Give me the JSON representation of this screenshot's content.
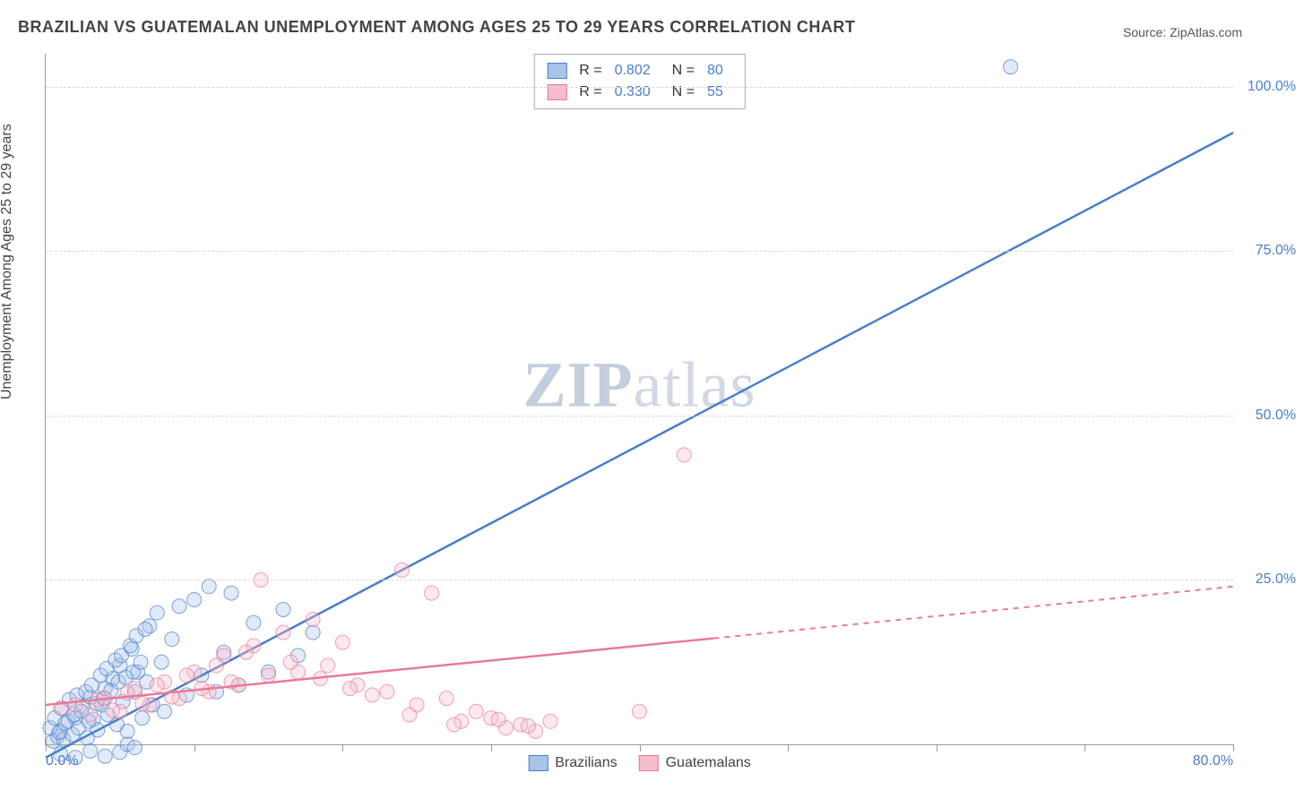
{
  "title": "BRAZILIAN VS GUATEMALAN UNEMPLOYMENT AMONG AGES 25 TO 29 YEARS CORRELATION CHART",
  "source_label": "Source:",
  "source_value": "ZipAtlas.com",
  "y_axis_label": "Unemployment Among Ages 25 to 29 years",
  "watermark_bold": "ZIP",
  "watermark_light": "atlas",
  "chart": {
    "type": "scatter-regression",
    "xlim": [
      0,
      80
    ],
    "ylim": [
      0,
      105
    ],
    "x_ticks": [
      0,
      10,
      20,
      30,
      40,
      50,
      60,
      70,
      80
    ],
    "x_tick_labels": {
      "0": "0.0%",
      "80": "80.0%"
    },
    "y_gridlines": [
      25,
      50,
      75,
      100
    ],
    "y_tick_labels": {
      "25": "25.0%",
      "50": "50.0%",
      "75": "75.0%",
      "100": "100.0%"
    },
    "grid_color": "#d8d8d8",
    "axis_color": "#999999",
    "background_color": "#ffffff",
    "tick_label_color": "#4a7ec9",
    "marker_radius": 8,
    "marker_opacity": 0.35,
    "line_width": 2.5,
    "series": [
      {
        "name": "Brazilians",
        "color": "#4a7ec9",
        "fill": "#a8c4e8",
        "R": "0.802",
        "N": "80",
        "regression": {
          "x1": 0,
          "y1": -2,
          "x2": 80,
          "y2": 93,
          "dash_from_x": 80
        },
        "points": [
          [
            0.5,
            0.5
          ],
          [
            0.8,
            1.2
          ],
          [
            1.0,
            2.0
          ],
          [
            1.2,
            0.8
          ],
          [
            1.5,
            3.5
          ],
          [
            1.8,
            1.5
          ],
          [
            2.0,
            4.0
          ],
          [
            2.2,
            2.5
          ],
          [
            2.5,
            5.8
          ],
          [
            2.8,
            1.0
          ],
          [
            3.0,
            7.2
          ],
          [
            3.2,
            3.8
          ],
          [
            3.5,
            2.2
          ],
          [
            3.8,
            6.0
          ],
          [
            4.0,
            8.5
          ],
          [
            4.2,
            4.5
          ],
          [
            4.5,
            10.0
          ],
          [
            4.8,
            3.0
          ],
          [
            5.0,
            12.0
          ],
          [
            5.2,
            6.5
          ],
          [
            5.5,
            2.0
          ],
          [
            5.8,
            14.5
          ],
          [
            6.0,
            8.0
          ],
          [
            6.2,
            11.0
          ],
          [
            6.5,
            4.0
          ],
          [
            6.8,
            9.5
          ],
          [
            7.0,
            18.0
          ],
          [
            7.2,
            6.0
          ],
          [
            7.5,
            20.0
          ],
          [
            7.8,
            12.5
          ],
          [
            8.0,
            5.0
          ],
          [
            8.5,
            16.0
          ],
          [
            9.0,
            21.0
          ],
          [
            9.5,
            7.5
          ],
          [
            10.0,
            22.0
          ],
          [
            10.5,
            10.5
          ],
          [
            11.0,
            24.0
          ],
          [
            11.5,
            8.0
          ],
          [
            12.0,
            14.0
          ],
          [
            12.5,
            23.0
          ],
          [
            13.0,
            9.0
          ],
          [
            14.0,
            18.5
          ],
          [
            15.0,
            11.0
          ],
          [
            16.0,
            20.5
          ],
          [
            17.0,
            13.5
          ],
          [
            18.0,
            17.0
          ],
          [
            1.0,
            -1.5
          ],
          [
            2.0,
            -2.0
          ],
          [
            3.0,
            -1.0
          ],
          [
            4.0,
            -1.8
          ],
          [
            5.0,
            -1.2
          ],
          [
            5.5,
            0.0
          ],
          [
            6.0,
            -0.5
          ],
          [
            0.3,
            2.5
          ],
          [
            0.6,
            4.0
          ],
          [
            0.9,
            1.8
          ],
          [
            1.1,
            5.5
          ],
          [
            1.3,
            3.2
          ],
          [
            1.6,
            6.8
          ],
          [
            1.9,
            4.5
          ],
          [
            2.1,
            7.5
          ],
          [
            2.4,
            5.0
          ],
          [
            2.7,
            8.0
          ],
          [
            2.9,
            3.5
          ],
          [
            3.1,
            9.0
          ],
          [
            3.4,
            6.2
          ],
          [
            3.7,
            10.5
          ],
          [
            3.9,
            7.0
          ],
          [
            4.1,
            11.5
          ],
          [
            4.4,
            8.2
          ],
          [
            4.7,
            12.8
          ],
          [
            4.9,
            9.5
          ],
          [
            5.1,
            13.5
          ],
          [
            5.4,
            10.2
          ],
          [
            5.7,
            15.0
          ],
          [
            5.9,
            11.0
          ],
          [
            6.1,
            16.5
          ],
          [
            6.4,
            12.5
          ],
          [
            6.7,
            17.5
          ],
          [
            65,
            103
          ]
        ]
      },
      {
        "name": "Guatemalans",
        "color": "#e87a9a",
        "fill": "#f5bccb",
        "R": "0.330",
        "N": "55",
        "regression": {
          "x1": 0,
          "y1": 6,
          "x2": 80,
          "y2": 24,
          "dash_from_x": 45
        },
        "points": [
          [
            1.0,
            5.5
          ],
          [
            2.0,
            6.0
          ],
          [
            3.0,
            4.5
          ],
          [
            4.0,
            7.0
          ],
          [
            5.0,
            5.0
          ],
          [
            6.0,
            8.5
          ],
          [
            7.0,
            6.0
          ],
          [
            8.0,
            9.5
          ],
          [
            9.0,
            7.0
          ],
          [
            10.0,
            11.0
          ],
          [
            11.0,
            8.0
          ],
          [
            12.0,
            13.5
          ],
          [
            13.0,
            9.0
          ],
          [
            14.0,
            15.0
          ],
          [
            15.0,
            10.5
          ],
          [
            16.0,
            17.0
          ],
          [
            17.0,
            11.0
          ],
          [
            18.0,
            19.0
          ],
          [
            19.0,
            12.0
          ],
          [
            20.0,
            15.5
          ],
          [
            21.0,
            9.0
          ],
          [
            22.0,
            7.5
          ],
          [
            23.0,
            8.0
          ],
          [
            24.0,
            26.5
          ],
          [
            25.0,
            6.0
          ],
          [
            26.0,
            23.0
          ],
          [
            27.0,
            7.0
          ],
          [
            28.0,
            3.5
          ],
          [
            29.0,
            5.0
          ],
          [
            30.0,
            4.0
          ],
          [
            31.0,
            2.5
          ],
          [
            32.0,
            3.0
          ],
          [
            33.0,
            2.0
          ],
          [
            34.0,
            3.5
          ],
          [
            40.0,
            5.0
          ],
          [
            43.0,
            44.0
          ],
          [
            3.5,
            6.8
          ],
          [
            4.5,
            5.2
          ],
          [
            5.5,
            7.8
          ],
          [
            6.5,
            6.2
          ],
          [
            7.5,
            9.0
          ],
          [
            8.5,
            7.2
          ],
          [
            9.5,
            10.5
          ],
          [
            10.5,
            8.5
          ],
          [
            11.5,
            12.0
          ],
          [
            12.5,
            9.5
          ],
          [
            13.5,
            14.0
          ],
          [
            14.5,
            25.0
          ],
          [
            16.5,
            12.5
          ],
          [
            18.5,
            10.0
          ],
          [
            20.5,
            8.5
          ],
          [
            24.5,
            4.5
          ],
          [
            27.5,
            3.0
          ],
          [
            30.5,
            3.8
          ],
          [
            32.5,
            2.8
          ]
        ]
      }
    ]
  },
  "legend_stats_labels": {
    "R": "R =",
    "N": "N ="
  }
}
